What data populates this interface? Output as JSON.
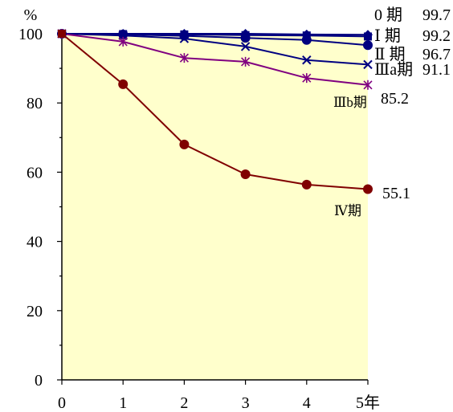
{
  "chart_data": {
    "type": "line",
    "ylabel": "%",
    "x": [
      0,
      1,
      2,
      3,
      4,
      5
    ],
    "x_tick_labels": [
      "0",
      "1",
      "2",
      "3",
      "4",
      "5年"
    ],
    "xlim": [
      0,
      5
    ],
    "ylim": [
      0,
      100
    ],
    "y_ticks": [
      0,
      20,
      40,
      60,
      80,
      100
    ],
    "y_tick_labels": [
      "0",
      "20",
      "40",
      "60",
      "80",
      "100"
    ],
    "grid": false,
    "legend": "right",
    "plot_background": "#FFFFCC",
    "series": [
      {
        "name": "0 期",
        "end_label": "99.7",
        "color": "#000080",
        "marker": "diamond",
        "values": [
          100,
          100,
          100,
          100,
          99.8,
          99.7
        ]
      },
      {
        "name": "Ⅰ 期",
        "end_label": "99.2",
        "color": "#000080",
        "marker": "square",
        "values": [
          100,
          99.9,
          99.8,
          99.6,
          99.5,
          99.2
        ]
      },
      {
        "name": "Ⅱ 期",
        "end_label": "96.7",
        "color": "#000080",
        "marker": "circle",
        "values": [
          100,
          99.8,
          99.4,
          98.8,
          98.2,
          96.7
        ]
      },
      {
        "name": "Ⅲa期",
        "end_label": "91.1",
        "color": "#000080",
        "marker": "x",
        "values": [
          100,
          99.5,
          98.6,
          96.3,
          92.4,
          91.1
        ]
      },
      {
        "name": "Ⅲb期",
        "end_label": "85.2",
        "color": "#800080",
        "marker": "star",
        "values": [
          100,
          97.7,
          93.0,
          91.9,
          87.2,
          85.2
        ]
      },
      {
        "name": "Ⅳ期",
        "end_label": "55.1",
        "color": "#800000",
        "markers": [
          "square",
          "circle",
          "circle",
          "circle",
          "circle",
          "circle"
        ],
        "values": [
          100,
          85.4,
          68.0,
          59.4,
          56.4,
          55.1
        ]
      }
    ]
  }
}
